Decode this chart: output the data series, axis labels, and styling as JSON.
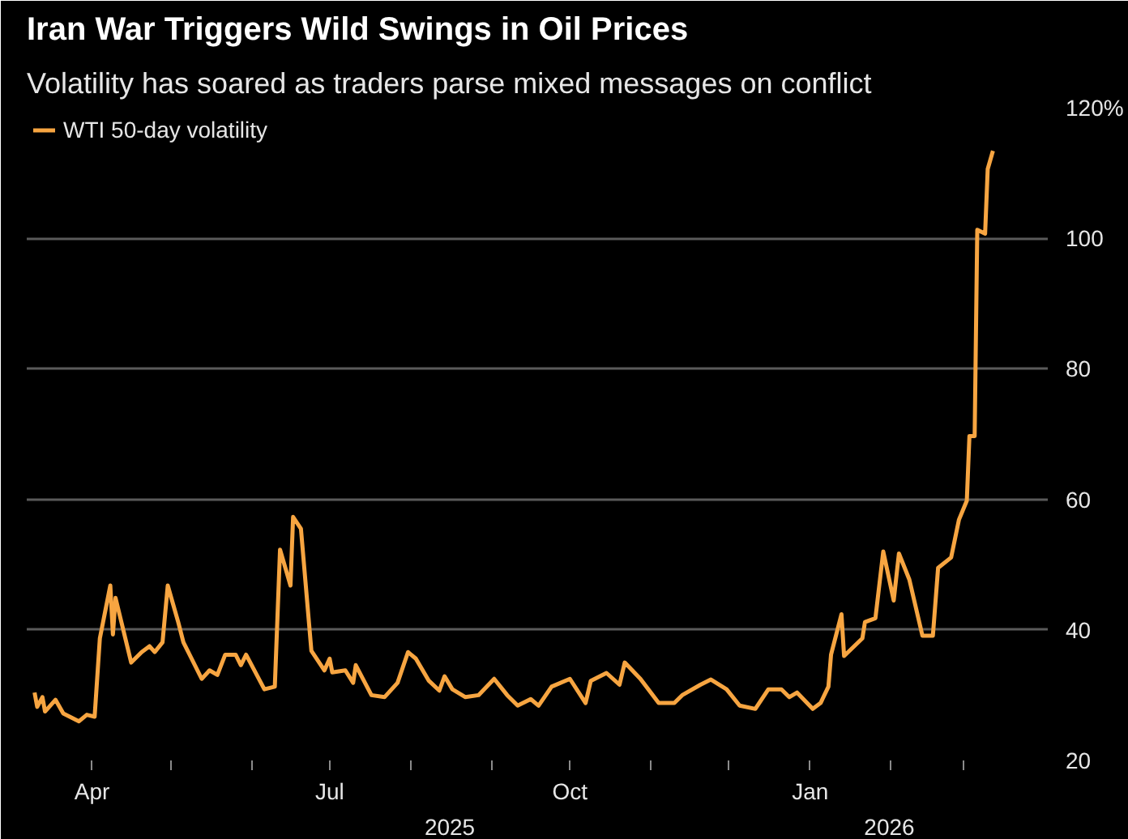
{
  "chart_data": {
    "type": "line",
    "title": "Iran War Triggers Wild Swings in Oil Prices",
    "subtitle": "Volatility has soared as traders parse mixed messages on conflict",
    "x": [
      "2025-03-10",
      "2025-03-11",
      "2025-03-13",
      "2025-03-14",
      "2025-03-18",
      "2025-03-21",
      "2025-03-27",
      "2025-03-30",
      "2025-04-02",
      "2025-04-04",
      "2025-04-08",
      "2025-04-09",
      "2025-04-10",
      "2025-04-16",
      "2025-04-20",
      "2025-04-23",
      "2025-04-25",
      "2025-04-28",
      "2025-04-30",
      "2025-05-04",
      "2025-05-06",
      "2025-05-13",
      "2025-05-16",
      "2025-05-19",
      "2025-05-22",
      "2025-05-26",
      "2025-05-28",
      "2025-05-30",
      "2025-06-06",
      "2025-06-10",
      "2025-06-12",
      "2025-06-16",
      "2025-06-17",
      "2025-06-20",
      "2025-06-24",
      "2025-06-29",
      "2025-07-01",
      "2025-07-02",
      "2025-07-07",
      "2025-07-10",
      "2025-07-11",
      "2025-07-17",
      "2025-07-22",
      "2025-07-27",
      "2025-07-31",
      "2025-08-03",
      "2025-08-08",
      "2025-08-12",
      "2025-08-14",
      "2025-08-17",
      "2025-08-22",
      "2025-08-27",
      "2025-09-02",
      "2025-09-07",
      "2025-09-11",
      "2025-09-16",
      "2025-09-19",
      "2025-09-24",
      "2025-10-01",
      "2025-10-07",
      "2025-10-09",
      "2025-10-15",
      "2025-10-20",
      "2025-10-22",
      "2025-10-28",
      "2025-11-04",
      "2025-11-10",
      "2025-11-13",
      "2025-11-20",
      "2025-11-24",
      "2025-11-30",
      "2025-12-05",
      "2025-12-11",
      "2025-12-16",
      "2025-12-21",
      "2025-12-24",
      "2025-12-27",
      "2026-01-02",
      "2026-01-05",
      "2026-01-08",
      "2026-01-09",
      "2026-01-13",
      "2026-01-14",
      "2026-01-21",
      "2026-01-22",
      "2026-01-26",
      "2026-01-29",
      "2026-02-02",
      "2026-02-04",
      "2026-02-08",
      "2026-02-13",
      "2026-02-17",
      "2026-02-19",
      "2026-02-24",
      "2026-02-27",
      "2026-03-02",
      "2026-03-03",
      "2026-03-05",
      "2026-03-06",
      "2026-03-09",
      "2026-03-10",
      "2026-03-12"
    ],
    "series": [
      {
        "name": "WTI 50-day volatility",
        "color": "#f7a541",
        "values": [
          30.4,
          28.2,
          29.7,
          27.5,
          29.3,
          27.2,
          26.0,
          27.0,
          26.7,
          38.7,
          46.8,
          39.3,
          44.9,
          35.0,
          36.6,
          37.5,
          36.6,
          38.1,
          46.8,
          41.2,
          38.1,
          32.5,
          33.8,
          33.1,
          36.2,
          36.2,
          34.6,
          36.2,
          30.9,
          31.3,
          52.3,
          46.8,
          57.3,
          55.5,
          36.8,
          33.8,
          35.6,
          33.5,
          33.8,
          31.9,
          34.6,
          30.0,
          29.7,
          31.9,
          36.6,
          35.6,
          32.2,
          30.7,
          32.9,
          30.9,
          29.7,
          30.0,
          32.5,
          30.0,
          28.4,
          29.4,
          28.4,
          31.3,
          32.5,
          28.8,
          32.2,
          33.4,
          31.6,
          35.0,
          32.5,
          28.8,
          28.8,
          30.0,
          31.6,
          32.4,
          30.9,
          28.4,
          27.9,
          30.9,
          30.9,
          29.7,
          30.4,
          27.9,
          28.8,
          31.3,
          36.2,
          42.4,
          36.0,
          38.7,
          41.2,
          41.8,
          52.0,
          44.5,
          51.7,
          47.7,
          39.1,
          39.1,
          49.5,
          51.1,
          56.9,
          59.8,
          69.7,
          69.7,
          101.3,
          100.7,
          110.6,
          113.4
        ]
      }
    ],
    "xlim": [
      "2025-03-07",
      "2026-04-02"
    ],
    "xticks": [
      {
        "value": "2025-04-01",
        "label": "Apr"
      },
      {
        "value": "2025-05-01",
        "label": null
      },
      {
        "value": "2025-06-01",
        "label": null
      },
      {
        "value": "2025-07-01",
        "label": "Jul"
      },
      {
        "value": "2025-08-01",
        "label": null
      },
      {
        "value": "2025-09-01",
        "label": null
      },
      {
        "value": "2025-10-01",
        "label": "Oct"
      },
      {
        "value": "2025-11-01",
        "label": null
      },
      {
        "value": "2025-12-01",
        "label": null
      },
      {
        "value": "2026-01-01",
        "label": "Jan"
      },
      {
        "value": "2026-02-01",
        "label": null
      },
      {
        "value": "2026-03-01",
        "label": null
      }
    ],
    "ylim": [
      20,
      120
    ],
    "yticks": [
      20,
      40,
      60,
      80,
      100,
      {
        "value": 120,
        "label": "120%"
      }
    ],
    "annotations": [
      "2025",
      "2026"
    ],
    "grid": "y",
    "legend": "top left",
    "line_style": "solid"
  }
}
